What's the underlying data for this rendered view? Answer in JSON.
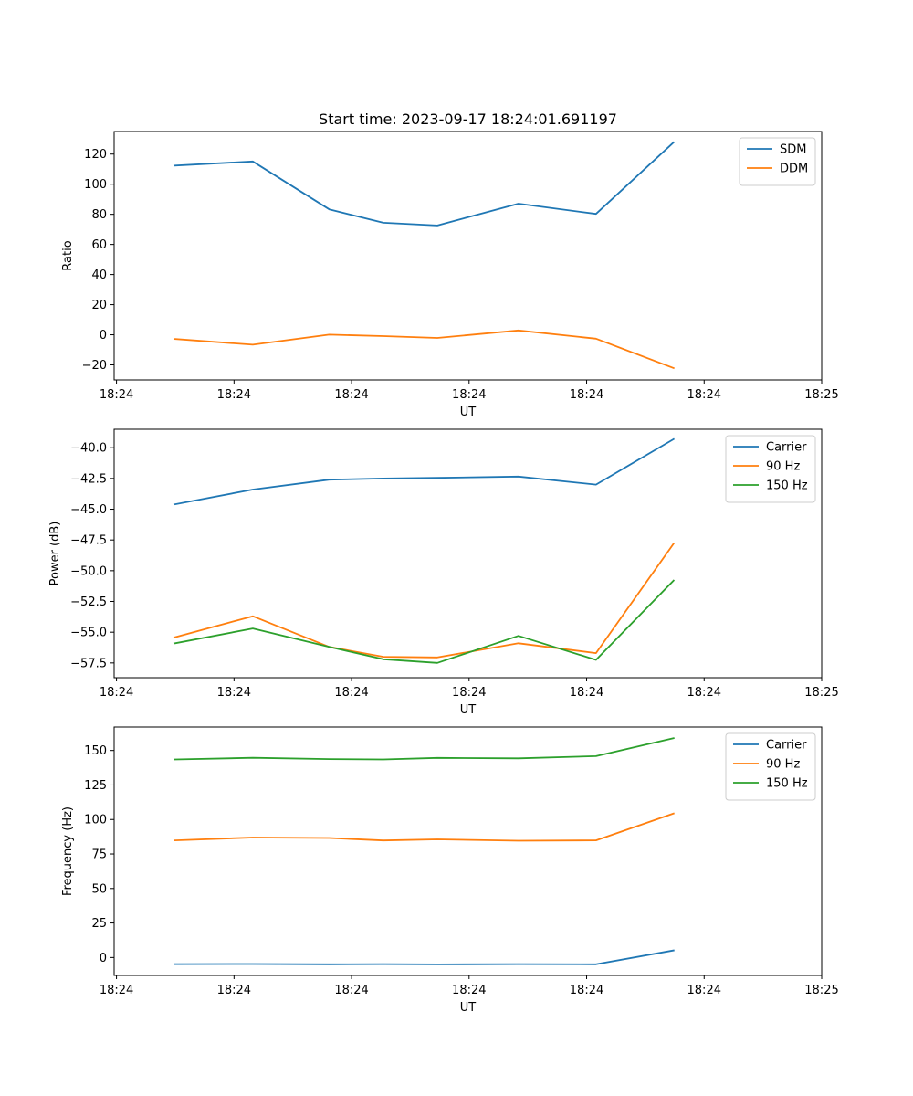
{
  "title": "Start time: 2023-09-17 18:24:01.691197",
  "chart_data": [
    {
      "type": "line",
      "title": "Start time: 2023-09-17 18:24:01.691197",
      "xlabel": "UT",
      "ylabel": "Ratio",
      "x": [
        0.5,
        1.16,
        1.81,
        2.27,
        2.73,
        3.42,
        4.08,
        4.74
      ],
      "xlim": [
        -0.02,
        6.0
      ],
      "x_ticks": [
        0,
        1,
        2,
        3,
        4,
        5,
        6
      ],
      "x_tick_labels": [
        "18:24",
        "18:24",
        "18:24",
        "18:24",
        "18:24",
        "18:24",
        "18:25"
      ],
      "ylim": [
        -30,
        135
      ],
      "y_ticks": [
        -20,
        0,
        20,
        40,
        60,
        80,
        100,
        120
      ],
      "y_tick_labels": [
        "−20",
        "0",
        "20",
        "40",
        "60",
        "80",
        "100",
        "120"
      ],
      "legend_position": "top-right",
      "series": [
        {
          "name": "SDM",
          "color": "#1f77b4",
          "values": [
            112.4,
            115.1,
            83.3,
            74.4,
            72.6,
            87.1,
            80.3,
            127.8
          ]
        },
        {
          "name": "DDM",
          "color": "#ff7f0e",
          "values": [
            -2.8,
            -6.6,
            0.1,
            -0.9,
            -2.1,
            2.9,
            -2.6,
            -22.1
          ]
        }
      ]
    },
    {
      "type": "line",
      "xlabel": "UT",
      "ylabel": "Power (dB)",
      "x": [
        0.5,
        1.16,
        1.81,
        2.27,
        2.73,
        3.42,
        4.08,
        4.74
      ],
      "xlim": [
        -0.02,
        6.0
      ],
      "x_ticks": [
        0,
        1,
        2,
        3,
        4,
        5,
        6
      ],
      "x_tick_labels": [
        "18:24",
        "18:24",
        "18:24",
        "18:24",
        "18:24",
        "18:24",
        "18:25"
      ],
      "ylim": [
        -58.7,
        -38.5
      ],
      "y_ticks": [
        -57.5,
        -55.0,
        -52.5,
        -50.0,
        -47.5,
        -45.0,
        -42.5,
        -40.0
      ],
      "y_tick_labels": [
        "−57.5",
        "−55.0",
        "−52.5",
        "−50.0",
        "−47.5",
        "−45.0",
        "−42.5",
        "−40.0"
      ],
      "legend_position": "top-right",
      "series": [
        {
          "name": "Carrier",
          "color": "#1f77b4",
          "values": [
            -44.6,
            -43.4,
            -42.6,
            -42.5,
            -42.45,
            -42.35,
            -43.0,
            -39.3
          ]
        },
        {
          "name": "90 Hz",
          "color": "#ff7f0e",
          "values": [
            -55.4,
            -53.7,
            -56.2,
            -57.0,
            -57.05,
            -55.9,
            -56.7,
            -47.8
          ]
        },
        {
          "name": "150 Hz",
          "color": "#2ca02c",
          "values": [
            -55.9,
            -54.7,
            -56.2,
            -57.2,
            -57.5,
            -55.3,
            -57.25,
            -50.8
          ]
        }
      ]
    },
    {
      "type": "line",
      "xlabel": "UT",
      "ylabel": "Frequency (Hz)",
      "x": [
        0.5,
        1.16,
        1.81,
        2.27,
        2.73,
        3.42,
        4.08,
        4.74
      ],
      "xlim": [
        -0.02,
        6.0
      ],
      "x_ticks": [
        0,
        1,
        2,
        3,
        4,
        5,
        6
      ],
      "x_tick_labels": [
        "18:24",
        "18:24",
        "18:24",
        "18:24",
        "18:24",
        "18:24",
        "18:25"
      ],
      "ylim": [
        -13,
        167
      ],
      "y_ticks": [
        0,
        25,
        50,
        75,
        100,
        125,
        150
      ],
      "y_tick_labels": [
        "0",
        "25",
        "50",
        "75",
        "100",
        "125",
        "150"
      ],
      "legend_position": "top-right",
      "series": [
        {
          "name": "Carrier",
          "color": "#1f77b4",
          "values": [
            -4.8,
            -4.7,
            -4.9,
            -4.8,
            -5.0,
            -4.8,
            -4.9,
            5.1
          ]
        },
        {
          "name": "90 Hz",
          "color": "#ff7f0e",
          "values": [
            84.9,
            86.9,
            86.6,
            84.8,
            85.6,
            84.6,
            84.9,
            104.3
          ]
        },
        {
          "name": "150 Hz",
          "color": "#2ca02c",
          "values": [
            143.5,
            144.7,
            143.8,
            143.5,
            144.6,
            144.3,
            145.9,
            158.9
          ]
        }
      ]
    }
  ]
}
